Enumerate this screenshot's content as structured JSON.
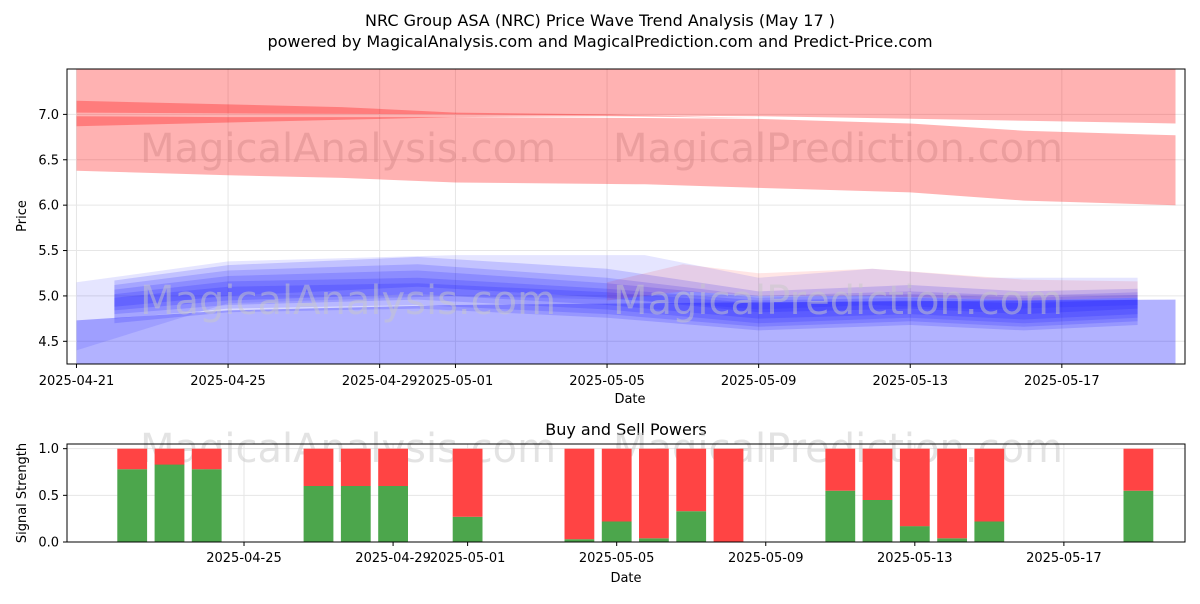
{
  "title": "NRC Group ASA (NRC) Price Wave Trend Analysis (May 17 )",
  "subtitle": "powered by MagicalAnalysis.com and MagicalPrediction.com and Predict-Price.com",
  "watermarks": [
    "MagicalAnalysis.com",
    "MagicalPrediction.com"
  ],
  "colors": {
    "red_band": "#ff0000",
    "blue_band": "#0000ff",
    "buy": "#4ca64c",
    "sell": "#ff4444",
    "grid": "#e6e6e6",
    "watermark": "#c8c8c8"
  },
  "chart_data": [
    {
      "type": "area",
      "title": "",
      "xlabel": "Date",
      "ylabel": "Price",
      "x_range": [
        "2025-04-20T18:00",
        "2025-05-20T06:00"
      ],
      "ylim": [
        4.25,
        7.5
      ],
      "yticks": [
        4.5,
        5.0,
        5.5,
        6.0,
        6.5,
        7.0
      ],
      "ytick_labels": [
        "4.5",
        "5.0",
        "5.5",
        "6.0",
        "6.5",
        "7.0"
      ],
      "xticks": [
        "2025-04-21",
        "2025-04-25",
        "2025-04-29",
        "2025-05-01",
        "2025-05-05",
        "2025-05-09",
        "2025-05-13",
        "2025-05-17"
      ],
      "grid": true,
      "series": [
        {
          "name": "red-upper-band",
          "color": "red",
          "opacity": 0.3,
          "x": [
            "2025-04-21",
            "2025-05-01",
            "2025-05-09",
            "2025-05-16",
            "2025-05-20"
          ],
          "upper": [
            7.5,
            7.5,
            7.5,
            7.5,
            7.5
          ],
          "lower": [
            7.02,
            7.0,
            6.98,
            6.93,
            6.9
          ]
        },
        {
          "name": "red-main-band",
          "color": "red",
          "opacity": 0.3,
          "x": [
            "2025-04-21",
            "2025-04-25",
            "2025-04-28",
            "2025-05-01",
            "2025-05-06",
            "2025-05-09",
            "2025-05-13",
            "2025-05-16",
            "2025-05-20"
          ],
          "upper": [
            6.98,
            6.97,
            6.97,
            6.97,
            6.96,
            6.95,
            6.9,
            6.82,
            6.77
          ],
          "lower": [
            6.38,
            6.33,
            6.3,
            6.25,
            6.23,
            6.19,
            6.14,
            6.05,
            6.0
          ]
        },
        {
          "name": "red-wedge",
          "color": "red",
          "opacity": 0.3,
          "x": [
            "2025-04-21",
            "2025-04-28",
            "2025-05-01",
            "2025-05-05",
            "2025-05-09"
          ],
          "upper": [
            7.15,
            7.08,
            7.02,
            7.0,
            6.96
          ],
          "lower": [
            6.87,
            6.94,
            6.97,
            6.98,
            6.96
          ]
        },
        {
          "name": "blue-lower-band",
          "color": "blue",
          "opacity": 0.3,
          "x": [
            "2025-04-21",
            "2025-04-25",
            "2025-05-01",
            "2025-05-09",
            "2025-05-16",
            "2025-05-20"
          ],
          "upper": [
            4.73,
            4.84,
            4.9,
            4.93,
            4.95,
            4.96
          ],
          "lower": [
            4.25,
            4.25,
            4.25,
            4.25,
            4.25,
            4.25
          ]
        },
        {
          "name": "blue-wave-1",
          "color": "blue",
          "opacity": 0.15,
          "x": [
            "2025-04-22",
            "2025-04-25",
            "2025-04-30",
            "2025-05-05",
            "2025-05-09",
            "2025-05-13",
            "2025-05-16",
            "2025-05-19"
          ],
          "upper": [
            5.17,
            5.34,
            5.43,
            5.3,
            5.05,
            5.12,
            5.05,
            5.08
          ],
          "lower": [
            4.88,
            5.0,
            5.1,
            4.98,
            4.82,
            4.86,
            4.8,
            4.86
          ]
        },
        {
          "name": "blue-wave-2",
          "color": "blue",
          "opacity": 0.15,
          "x": [
            "2025-04-22",
            "2025-04-25",
            "2025-04-30",
            "2025-05-05",
            "2025-05-09",
            "2025-05-13",
            "2025-05-16",
            "2025-05-19"
          ],
          "upper": [
            5.12,
            5.28,
            5.35,
            5.2,
            5.0,
            5.05,
            5.0,
            5.04
          ],
          "lower": [
            4.84,
            4.95,
            5.02,
            4.9,
            4.75,
            4.8,
            4.74,
            4.8
          ]
        },
        {
          "name": "blue-wave-3",
          "color": "blue",
          "opacity": 0.15,
          "x": [
            "2025-04-22",
            "2025-04-25",
            "2025-04-30",
            "2025-05-05",
            "2025-05-09",
            "2025-05-13",
            "2025-05-16",
            "2025-05-19"
          ],
          "upper": [
            5.07,
            5.22,
            5.28,
            5.14,
            4.98,
            5.02,
            4.98,
            5.01
          ],
          "lower": [
            4.8,
            4.9,
            4.96,
            4.85,
            4.7,
            4.76,
            4.7,
            4.76
          ]
        },
        {
          "name": "blue-wave-4",
          "color": "blue",
          "opacity": 0.15,
          "x": [
            "2025-04-22",
            "2025-04-25",
            "2025-04-30",
            "2025-05-05",
            "2025-05-09",
            "2025-05-13",
            "2025-05-16",
            "2025-05-19"
          ],
          "upper": [
            5.02,
            5.16,
            5.2,
            5.08,
            4.95,
            4.98,
            4.95,
            4.98
          ],
          "lower": [
            4.75,
            4.86,
            4.9,
            4.8,
            4.66,
            4.72,
            4.66,
            4.72
          ]
        },
        {
          "name": "blue-wave-5",
          "color": "blue",
          "opacity": 0.15,
          "x": [
            "2025-04-22",
            "2025-04-25",
            "2025-04-30",
            "2025-05-05",
            "2025-05-09",
            "2025-05-13",
            "2025-05-16",
            "2025-05-19"
          ],
          "upper": [
            4.98,
            5.1,
            5.14,
            5.04,
            4.92,
            4.95,
            4.92,
            4.96
          ],
          "lower": [
            4.7,
            4.82,
            4.86,
            4.76,
            4.62,
            4.68,
            4.62,
            4.68
          ]
        },
        {
          "name": "pink-band",
          "color": "red",
          "opacity": 0.1,
          "x": [
            "2025-05-05",
            "2025-05-07",
            "2025-05-09",
            "2025-05-12",
            "2025-05-16",
            "2025-05-19"
          ],
          "upper": [
            5.15,
            5.35,
            5.25,
            5.3,
            5.18,
            5.16
          ],
          "lower": [
            4.95,
            5.05,
            5.0,
            5.0,
            4.95,
            4.98
          ]
        },
        {
          "name": "light-blue-band",
          "color": "blue",
          "opacity": 0.1,
          "x": [
            "2025-04-21",
            "2025-04-25",
            "2025-05-01",
            "2025-05-06",
            "2025-05-09",
            "2025-05-12",
            "2025-05-15",
            "2025-05-19"
          ],
          "upper": [
            5.15,
            5.38,
            5.45,
            5.45,
            5.2,
            5.3,
            5.2,
            5.2
          ],
          "lower": [
            4.4,
            4.92,
            5.0,
            4.95,
            4.85,
            4.9,
            4.85,
            4.9
          ]
        }
      ]
    },
    {
      "type": "bar",
      "title": "Buy and Sell Powers",
      "xlabel": "Date",
      "ylabel": "Signal Strength",
      "ylim": [
        0,
        1.05
      ],
      "yticks": [
        0.0,
        0.5,
        1.0
      ],
      "ytick_labels": [
        "0.0",
        "0.5",
        "1.0"
      ],
      "xticks": [
        "2025-04-25",
        "2025-04-29",
        "2025-05-01",
        "2025-05-05",
        "2025-05-09",
        "2025-05-13",
        "2025-05-17"
      ],
      "grid": true,
      "categories": [
        "2025-04-22",
        "2025-04-23",
        "2025-04-24",
        "2025-04-27",
        "2025-04-28",
        "2025-04-29",
        "2025-05-01",
        "2025-05-04",
        "2025-05-05",
        "2025-05-06",
        "2025-05-07",
        "2025-05-08",
        "2025-05-11",
        "2025-05-12",
        "2025-05-13",
        "2025-05-14",
        "2025-05-15",
        "2025-05-19"
      ],
      "series": [
        {
          "name": "Buy",
          "values": [
            0.78,
            0.83,
            0.78,
            0.6,
            0.6,
            0.6,
            0.27,
            0.03,
            0.22,
            0.04,
            0.33,
            0.0,
            0.55,
            0.45,
            0.17,
            0.04,
            0.22,
            0.55
          ]
        },
        {
          "name": "Sell",
          "values": [
            0.22,
            0.17,
            0.22,
            0.4,
            0.4,
            0.4,
            0.73,
            0.97,
            0.78,
            0.96,
            0.67,
            1.0,
            0.45,
            0.55,
            0.83,
            0.96,
            0.78,
            0.45
          ]
        }
      ]
    }
  ]
}
